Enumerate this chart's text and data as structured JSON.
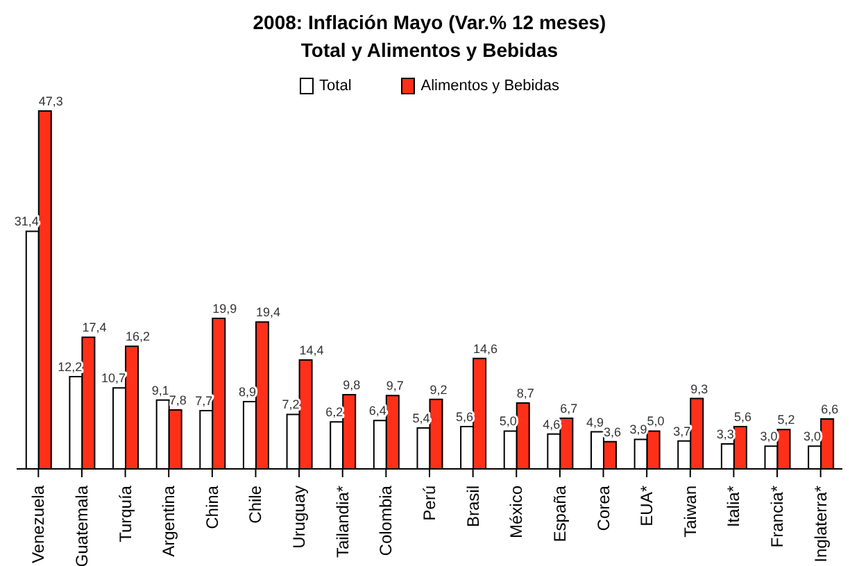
{
  "chart_data": {
    "type": "bar",
    "title": "2008: Inflación Mayo (Var.%  12 meses)",
    "subtitle": "Total y Alimentos y Bebidas",
    "categories": [
      "Venezuela",
      "Guatemala",
      "Turquía",
      "Argentina",
      "China",
      "Chile",
      "Uruguay",
      "Tailandia*",
      "Colombia",
      "Perú",
      "Brasil",
      "México",
      "España",
      "Corea",
      "EUA*",
      "Taiwan",
      "Italia*",
      "Francia*",
      "Inglaterra*"
    ],
    "series": [
      {
        "name": "Total",
        "color": "#ffffff",
        "values": [
          31.4,
          12.2,
          10.7,
          9.1,
          7.7,
          8.9,
          7.2,
          6.2,
          6.4,
          5.4,
          5.6,
          5.0,
          4.6,
          4.9,
          3.9,
          3.7,
          3.3,
          3.0,
          3.0
        ],
        "value_labels": [
          "31,4",
          "12,2",
          "10,7",
          "9,1",
          "7,7",
          "8,9",
          "7,2",
          "6,2",
          "6,4",
          "5,4",
          "5,6",
          "5,0",
          "4,6",
          "4,9",
          "3,9",
          "3,7",
          "3,3",
          "3,0",
          "3,0"
        ]
      },
      {
        "name": "Alimentos y  Bebidas",
        "color": "#ff3019",
        "values": [
          47.3,
          17.4,
          16.2,
          7.8,
          19.9,
          19.4,
          14.4,
          9.8,
          9.7,
          9.2,
          14.6,
          8.7,
          6.7,
          3.6,
          5.0,
          9.3,
          5.6,
          5.2,
          6.6
        ],
        "value_labels": [
          "47,3",
          "17,4",
          "16,2",
          "7,8",
          "19,9",
          "19,4",
          "14,4",
          "9,8",
          "9,7",
          "9,2",
          "14,6",
          "8,7",
          "6,7",
          "3,6",
          "5,0",
          "9,3",
          "5,6",
          "5,2",
          "6,6"
        ]
      }
    ],
    "legend": "top",
    "grid": false
  }
}
